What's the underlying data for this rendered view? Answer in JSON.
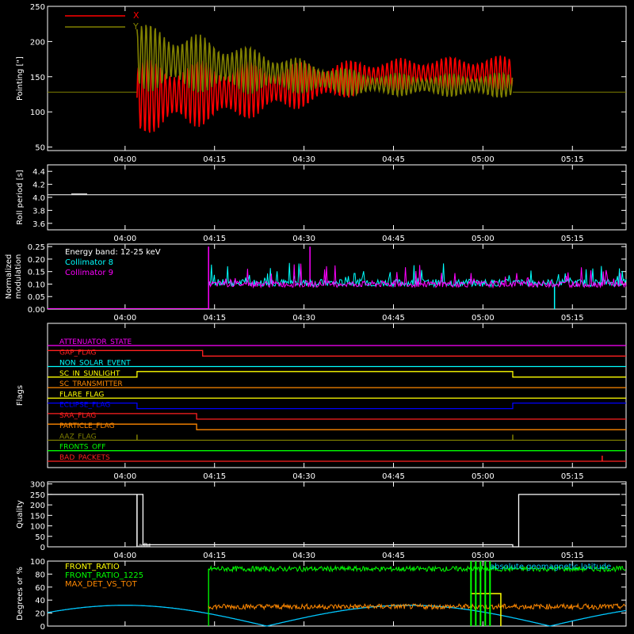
{
  "colors": {
    "background": "#000000",
    "axes": "#ffffff",
    "x": "#ff0000",
    "y": "#808000",
    "collimator8": "#00ffff",
    "collimator9": "#ff00ff",
    "front_ratio": "#ffff00",
    "front_ratio_1225": "#00ff00",
    "max_det": "#ff8800",
    "latitude": "#00c8ff"
  },
  "time_ticks": [
    "04:00",
    "04:15",
    "04:30",
    "04:45",
    "05:00",
    "05:15"
  ],
  "chart_data": [
    {
      "type": "line",
      "ylabel": "Pointing [\"]",
      "ylim": [
        45,
        250
      ],
      "yticks": [
        "50",
        "100",
        "150",
        "200",
        "250"
      ],
      "legend": [
        "X",
        "Y"
      ],
      "series": [
        {
          "name": "X",
          "x": [
            "04:02",
            "04:10",
            "04:20",
            "04:30",
            "04:40",
            "04:50",
            "05:00",
            "05:05"
          ],
          "center": [
            120,
            125,
            130,
            138,
            150,
            155,
            155,
            155
          ],
          "amplitude": [
            55,
            50,
            42,
            33,
            25,
            23,
            25,
            25
          ]
        },
        {
          "name": "Y",
          "x": [
            "04:02",
            "04:10",
            "04:20",
            "04:30",
            "04:40",
            "04:50",
            "05:00",
            "05:05"
          ],
          "center": [
            180,
            170,
            160,
            150,
            140,
            138,
            138,
            138
          ],
          "amplitude": [
            50,
            45,
            35,
            25,
            18,
            16,
            18,
            18
          ]
        }
      ],
      "baseline": 128
    },
    {
      "type": "line",
      "ylabel": "Roll period [s]",
      "ylim": [
        3.5,
        4.5
      ],
      "yticks": [
        "3.6",
        "3.8",
        "4.0",
        "4.2",
        "4.4"
      ],
      "series": [
        {
          "values": [
            4.04,
            4.04
          ]
        }
      ]
    },
    {
      "type": "line",
      "ylabel": "Normalized modulation",
      "ylim": [
        0,
        0.26
      ],
      "yticks": [
        "0.00",
        "0.05",
        "0.10",
        "0.15",
        "0.20",
        "0.25"
      ],
      "annotation": "Energy band: 12-25 keV",
      "legend": [
        "Collimator 8",
        "Collimator 9"
      ],
      "series": [
        {
          "name": "Collimator 8",
          "start": "04:14",
          "mean": 0.105,
          "spread": 0.03
        },
        {
          "name": "Collimator 9",
          "start": "04:14",
          "mean": 0.1,
          "spread": 0.025
        }
      ]
    },
    {
      "type": "line",
      "ylabel": "Flags",
      "flags": [
        {
          "name": "ATTENUATOR_STATE",
          "color": "#ff00ff",
          "state": [
            [
              0,
              0
            ]
          ]
        },
        {
          "name": "GAP_FLAG",
          "color": "#ff2020",
          "state": [
            [
              0,
              1
            ],
            [
              "04:13",
              0
            ]
          ]
        },
        {
          "name": "NON_SOLAR_EVENT",
          "color": "#00ffff",
          "state": [
            [
              0,
              0
            ]
          ]
        },
        {
          "name": "SC_IN_SUNLIGHT",
          "color": "#ffff00",
          "state": [
            [
              0,
              0
            ],
            [
              "04:02",
              1
            ],
            [
              "05:05",
              0
            ]
          ]
        },
        {
          "name": "SC_TRANSMITTER",
          "color": "#ff8800",
          "state": [
            [
              0,
              0
            ]
          ]
        },
        {
          "name": "FLARE_FLAG",
          "color": "#ffff00",
          "state": [
            [
              0,
              0
            ]
          ]
        },
        {
          "name": "ECLIPSE_FLAG",
          "color": "#0000ff",
          "state": [
            [
              0,
              1
            ],
            [
              "04:02",
              0
            ],
            [
              "05:05",
              1
            ]
          ]
        },
        {
          "name": "SAA_FLAG",
          "color": "#ff2020",
          "state": [
            [
              0,
              1
            ],
            [
              "04:12",
              0
            ]
          ]
        },
        {
          "name": "PARTICLE_FLAG",
          "color": "#ff8800",
          "state": [
            [
              0,
              1
            ],
            [
              "04:12",
              0
            ]
          ]
        },
        {
          "name": "AAZ_FLAG",
          "color": "#808000",
          "state": [
            [
              0,
              0
            ]
          ],
          "spikes": [
            "04:02",
            "05:05"
          ]
        },
        {
          "name": "FRONTS_OFF",
          "color": "#00ff00",
          "state": [
            [
              0,
              0
            ]
          ]
        },
        {
          "name": "BAD_PACKETS",
          "color": "#ff2020",
          "state": [
            [
              0,
              0
            ]
          ],
          "spikes": [
            "05:20"
          ]
        }
      ]
    },
    {
      "type": "line",
      "ylabel": "Quality",
      "ylim": [
        0,
        310
      ],
      "yticks": [
        "0",
        "50",
        "100",
        "150",
        "200",
        "250",
        "300"
      ],
      "series": [
        {
          "x": [
            "03:47",
            "04:02",
            "04:03",
            "05:05",
            "05:06",
            "05:23"
          ],
          "values": [
            250,
            250,
            10,
            0,
            250,
            250
          ]
        }
      ]
    },
    {
      "type": "line",
      "ylabel": "Degrees or %",
      "ylim": [
        0,
        100
      ],
      "yticks": [
        "0",
        "20",
        "40",
        "60",
        "80",
        "100"
      ],
      "legend": [
        "FRONT_RATIO",
        "FRONT_RATIO_1225",
        "MAX_DET_VS_TOT"
      ],
      "annotation": "absolute geomagnetic latitude",
      "series": [
        {
          "name": "FRONT_RATIO_1225",
          "start": "04:14",
          "mean": 88,
          "spread": 4
        },
        {
          "name": "MAX_DET_VS_TOT",
          "start": "04:14",
          "mean": 30,
          "spread": 4
        },
        {
          "name": "FRONT_RATIO",
          "start": "04:58",
          "end": "05:03",
          "mean": 50,
          "spread": 2
        },
        {
          "name": "absolute geomagnetic latitude",
          "peak": 32,
          "period_min": 95,
          "first_peak": "04:00"
        }
      ]
    }
  ]
}
